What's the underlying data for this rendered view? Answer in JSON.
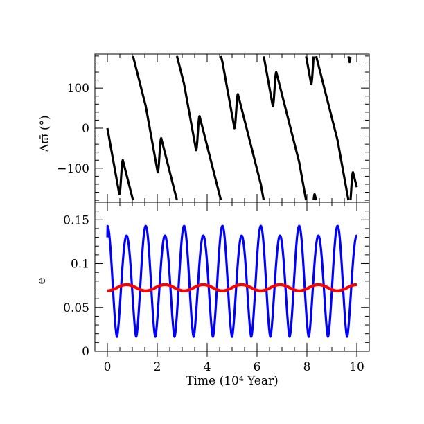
{
  "chart_data": [
    {
      "type": "line",
      "xlabel": "",
      "ylabel": "Δϖ̄ (°)",
      "xlim": [
        -0.5,
        10.5
      ],
      "ylim": [
        -185,
        185
      ],
      "yticks": [
        -100,
        0,
        100
      ],
      "ytick_labels": [
        "−100",
        "0",
        "100"
      ],
      "show_xtick_labels": false,
      "grid": false,
      "series": [
        {
          "color": "#000000",
          "period": 1.538,
          "wrap": [
            -180,
            180
          ],
          "x_start": 0.0,
          "x_end": 10.0,
          "value_at_start": 0,
          "segments_per_period": [
            {
              "x": [
                0.0,
                0.48
              ],
              "y": [
                0,
                -165
              ]
            },
            {
              "x": [
                0.48,
                0.62
              ],
              "y": [
                -165,
                -80
              ]
            },
            {
              "x": [
                0.62,
                1.538
              ],
              "y": [
                -80,
                -305
              ]
            }
          ]
        }
      ]
    },
    {
      "type": "line",
      "xlabel": "Time (10⁴ Year)",
      "ylabel": "e",
      "xlim": [
        -0.5,
        10.5
      ],
      "ylim": [
        0,
        0.17
      ],
      "xticks": [
        0,
        2,
        4,
        6,
        8,
        10
      ],
      "xtick_labels": [
        "0",
        "2",
        "4",
        "6",
        "8",
        "10"
      ],
      "yticks": [
        0,
        0.05,
        0.1,
        0.15
      ],
      "ytick_labels": [
        "0",
        "0.05",
        "0.1",
        "0.15"
      ],
      "grid": false,
      "series": [
        {
          "color": "#0000ff",
          "x_start": 0.0,
          "x_end": 10.0,
          "oscillation_period": 0.769,
          "peak_max": 0.143,
          "peak_min": 0.132,
          "trough_min": 0.013,
          "trough_max": 0.02,
          "value_at_start": 0.13
        },
        {
          "color": "#ff0000",
          "x_start": 0.0,
          "x_end": 10.0,
          "oscillation_period": 1.538,
          "peak": 0.076,
          "trough": 0.069,
          "value_at_start": 0.069
        }
      ]
    }
  ]
}
